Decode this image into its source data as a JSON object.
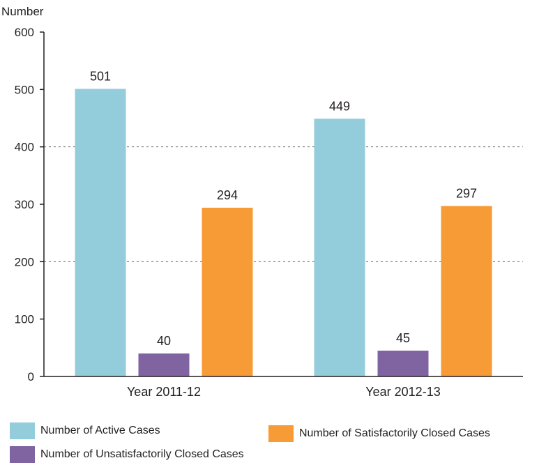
{
  "chart_data": {
    "type": "bar",
    "ylabel": "Number",
    "ylim": [
      0,
      600
    ],
    "yticks": [
      0,
      100,
      200,
      300,
      400,
      500,
      600
    ],
    "dashed_gridlines_at": [
      200,
      400
    ],
    "categories": [
      "Year 2011-12",
      "Year 2012-13"
    ],
    "series": [
      {
        "name": "Number of Active Cases",
        "color": "#93cddc",
        "values": [
          501,
          449
        ],
        "labels": [
          "501",
          "449"
        ]
      },
      {
        "name": "Number of Unsatisfactorily Closed Cases",
        "color": "#8064a2",
        "values": [
          40,
          45
        ],
        "labels": [
          "40",
          "45"
        ]
      },
      {
        "name": "Number of Satisfactorily Closed Cases",
        "color": "#f79b36",
        "values": [
          294,
          297
        ],
        "labels": [
          "294",
          "297"
        ]
      }
    ],
    "legend_position": "bottom"
  }
}
